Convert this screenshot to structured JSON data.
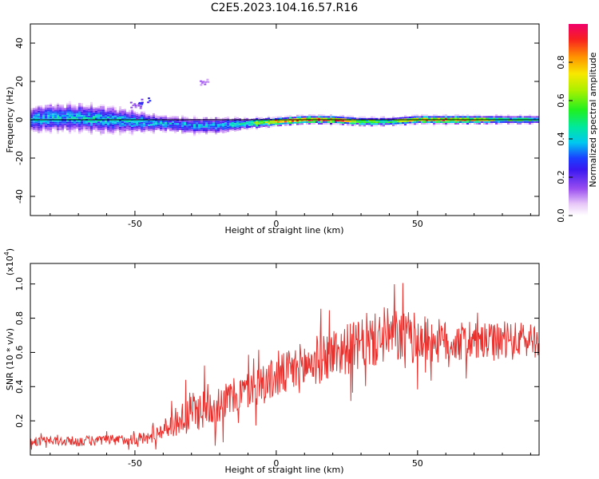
{
  "title": "C2E5.2023.104.16.57.R16",
  "chart_data": [
    {
      "type": "heatmap",
      "xlabel": "Height of straight line (km)",
      "ylabel": "Frequency (Hz)",
      "xlim": [
        -87,
        93
      ],
      "ylim": [
        -50,
        50
      ],
      "xticks": [
        -50,
        0,
        50
      ],
      "yticks": [
        -40,
        -20,
        0,
        20,
        40
      ],
      "tick_labels_x": [
        "-50",
        "0",
        "50"
      ],
      "tick_labels_y": [
        "-40",
        "-20",
        "0",
        "20",
        "40"
      ],
      "colorbar": {
        "label": "Normalized spectral amplitude",
        "range": [
          0,
          1
        ],
        "ticks": [
          "0.0",
          "0.2",
          "0.4",
          "0.6",
          "0.8"
        ],
        "tick_values": [
          0.0,
          0.2,
          0.4,
          0.6,
          0.8
        ]
      },
      "ridge": {
        "x": [
          -87,
          -80,
          -70,
          -60,
          -50,
          -40,
          -30,
          -20,
          -10,
          0,
          10,
          20,
          30,
          40,
          50,
          60,
          70,
          80,
          93
        ],
        "center_y": [
          0,
          1,
          1,
          0,
          -1,
          -2,
          -3,
          -3,
          -2,
          -1,
          0,
          0,
          -1,
          -1,
          0,
          0,
          0,
          0,
          0
        ],
        "peak": [
          0.4,
          0.45,
          0.45,
          0.45,
          0.42,
          0.4,
          0.4,
          0.4,
          0.5,
          0.95,
          0.92,
          0.95,
          0.75,
          0.6,
          0.85,
          0.95,
          0.8,
          0.6,
          0.5
        ],
        "halfwidth": [
          5,
          5,
          5,
          5,
          4,
          3,
          3,
          3,
          2,
          1.5,
          1.5,
          1.5,
          1.5,
          1.5,
          1.5,
          1.5,
          1.5,
          1.5,
          1.5
        ]
      },
      "outliers": [
        {
          "x": -26,
          "y": 20,
          "value": 0.12
        },
        {
          "x": -47,
          "y": 10,
          "value": 0.25
        },
        {
          "x": -50,
          "y": 8,
          "value": 0.15
        }
      ]
    },
    {
      "type": "line",
      "xlabel": "Height of straight line (km)",
      "ylabel": "SNR (10 * v/v)",
      "y_multiplier_label": "(x10",
      "y_multiplier_exp": "4",
      "xlim": [
        -87,
        93
      ],
      "ylim": [
        0,
        1.12
      ],
      "xticks": [
        -50,
        0,
        50
      ],
      "yticks": [
        0.2,
        0.4,
        0.6,
        0.8,
        1.0
      ],
      "tick_labels_x": [
        "-50",
        "0",
        "50"
      ],
      "tick_labels_y": [
        "0.2",
        "0.4",
        "0.6",
        "0.8",
        "1.0"
      ],
      "color": "#e8302d",
      "trend": {
        "x": [
          -87,
          -70,
          -55,
          -45,
          -40,
          -35,
          -30,
          -20,
          -10,
          0,
          10,
          20,
          30,
          40,
          50,
          60,
          70,
          80,
          93
        ],
        "mean": [
          0.08,
          0.08,
          0.09,
          0.1,
          0.15,
          0.2,
          0.25,
          0.3,
          0.38,
          0.45,
          0.52,
          0.6,
          0.64,
          0.7,
          0.68,
          0.66,
          0.66,
          0.66,
          0.68
        ],
        "spread": [
          0.05,
          0.06,
          0.06,
          0.08,
          0.1,
          0.18,
          0.25,
          0.22,
          0.22,
          0.25,
          0.3,
          0.3,
          0.3,
          0.33,
          0.3,
          0.25,
          0.22,
          0.22,
          0.22
        ]
      }
    }
  ]
}
